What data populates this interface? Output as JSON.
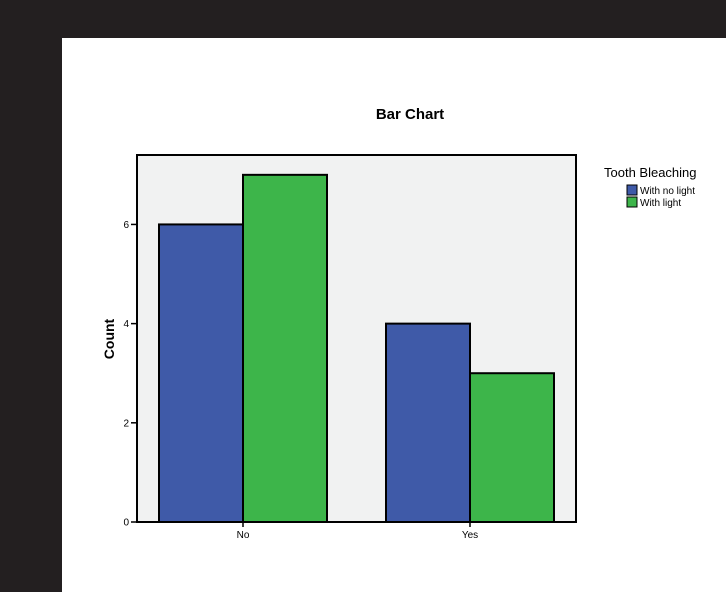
{
  "chart_data": {
    "type": "bar",
    "title": "Bar Chart",
    "xlabel": "",
    "ylabel": "Count",
    "categories": [
      "No",
      "Yes"
    ],
    "series": [
      {
        "name": "With no light",
        "color": "#3f5aa8",
        "values": [
          6,
          4
        ]
      },
      {
        "name": "With light",
        "color": "#3db54a",
        "values": [
          7,
          3
        ]
      }
    ],
    "ylim": [
      0,
      7.4
    ],
    "yticks": [
      0,
      2,
      4,
      6
    ],
    "legend": {
      "title": "Tooth Bleaching",
      "placement": "right"
    },
    "plot_background": "#f1f2f2",
    "grid": false
  }
}
